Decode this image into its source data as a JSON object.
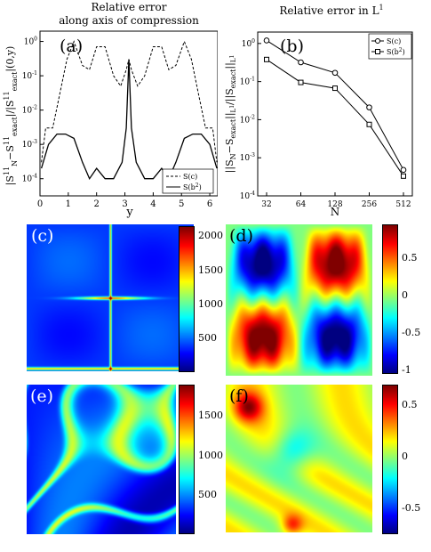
{
  "chart_data": [
    {
      "type": "line",
      "panel_label": "(a)",
      "title": "Relative error\nalong axis of compression",
      "xlabel": "y",
      "ylabel": "|S^11_N - S^11_exact|/|S^11_exact|(0,y)",
      "xlim": [
        0,
        6.28
      ],
      "ylim_log10": [
        -4.5,
        0.3
      ],
      "log_y": true,
      "x_ticks": [
        "0",
        "1",
        "2",
        "3",
        "4",
        "5",
        "6"
      ],
      "y_ticks": [
        "10^-4",
        "10^-3",
        "10^-2",
        "10^-1",
        "10^0"
      ],
      "legend": "bottom-right",
      "series": [
        {
          "name": "S(c)",
          "style": "dashed",
          "x": [
            0.05,
            0.2,
            0.45,
            0.7,
            0.95,
            1.2,
            1.5,
            1.75,
            2.0,
            2.3,
            2.6,
            2.85,
            3.05,
            3.14,
            3.23,
            3.45,
            3.7,
            4.0,
            4.3,
            4.55,
            4.8,
            5.1,
            5.35,
            5.6,
            5.85,
            6.1,
            6.25
          ],
          "y": [
            0.0003,
            0.003,
            0.003,
            0.03,
            0.3,
            1.0,
            0.2,
            0.15,
            0.7,
            0.7,
            0.1,
            0.05,
            0.15,
            0.3,
            0.15,
            0.05,
            0.1,
            0.7,
            0.7,
            0.15,
            0.2,
            1.0,
            0.3,
            0.03,
            0.003,
            0.003,
            0.0003
          ]
        },
        {
          "name": "S(b^2)",
          "style": "solid",
          "x": [
            0.05,
            0.3,
            0.6,
            0.9,
            1.2,
            1.5,
            1.75,
            2.0,
            2.3,
            2.6,
            2.9,
            3.05,
            3.14,
            3.23,
            3.4,
            3.7,
            4.0,
            4.3,
            4.55,
            4.8,
            5.1,
            5.4,
            5.7,
            6.0,
            6.25
          ],
          "y": [
            0.0002,
            0.001,
            0.002,
            0.002,
            0.0015,
            0.0003,
            0.0001,
            0.0002,
            0.0001,
            0.0001,
            0.0003,
            0.003,
            0.3,
            0.003,
            0.0003,
            0.0001,
            0.0001,
            0.0002,
            0.0001,
            0.0003,
            0.0015,
            0.002,
            0.002,
            0.001,
            0.0002
          ]
        }
      ]
    },
    {
      "type": "line",
      "panel_label": "(b)",
      "title": "Relative error in L^1",
      "xlabel": "N",
      "ylabel": "||S_N - S_exact||_L1 / ||S_exact||_L1",
      "log_x": true,
      "log_y": true,
      "categories": [
        "32",
        "64",
        "128",
        "256",
        "512"
      ],
      "ylim_log10": [
        -4,
        0.3
      ],
      "y_ticks": [
        "10^-4",
        "10^-3",
        "10^-2",
        "10^-1",
        "10^0"
      ],
      "legend": "top-right",
      "series": [
        {
          "name": "S(c)",
          "marker": "circle",
          "values": [
            1.2,
            0.32,
            0.17,
            0.021,
            0.00048
          ]
        },
        {
          "name": "S(b^2)",
          "marker": "square",
          "values": [
            0.38,
            0.095,
            0.067,
            0.0075,
            0.00033
          ]
        }
      ]
    },
    {
      "type": "heatmap",
      "panel_label": "(c)",
      "colorbar_ticks": [
        "500",
        "1000",
        "1500",
        "2000"
      ],
      "colorbar_range": [
        0,
        2150
      ]
    },
    {
      "type": "heatmap",
      "panel_label": "(d)",
      "colorbar_ticks": [
        "0.5",
        "0",
        "-0.5",
        "-1"
      ],
      "colorbar_range": [
        -1.05,
        0.95
      ]
    },
    {
      "type": "heatmap",
      "panel_label": "(e)",
      "colorbar_ticks": [
        "500",
        "1000",
        "1500"
      ],
      "colorbar_range": [
        0,
        1900
      ]
    },
    {
      "type": "heatmap",
      "panel_label": "(f)",
      "colorbar_ticks": [
        "0.5",
        "0",
        "-0.5"
      ],
      "colorbar_range": [
        -0.75,
        0.7
      ]
    }
  ]
}
